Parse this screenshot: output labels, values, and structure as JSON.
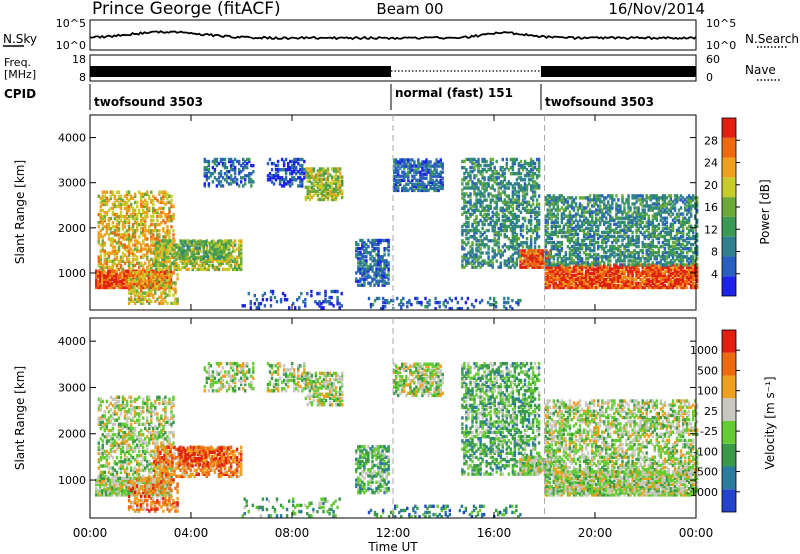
{
  "header": {
    "station": "Prince George (fitACF)",
    "beam": "Beam 00",
    "date": "16/Nov/2014"
  },
  "sky_panel": {
    "left_label": "N.Sky",
    "left_ticks": [
      "10^5",
      "10^0"
    ],
    "right_label": "N.Search",
    "right_ticks": [
      "10^5",
      "10^0"
    ]
  },
  "freq_panel": {
    "left_label_line1": "Freq.",
    "left_label_line2": "[MHz]",
    "left_ticks": [
      "18",
      "8"
    ],
    "right_label": "Nave",
    "right_ticks": [
      "60",
      "0"
    ]
  },
  "cpid": {
    "label": "CPID",
    "modes": [
      {
        "name": "twofsound 3503",
        "start_hour": 0
      },
      {
        "name": "normal (fast) 151",
        "start_hour": 12
      },
      {
        "name": "twofsound 3503",
        "start_hour": 18
      }
    ]
  },
  "chart_data": [
    {
      "type": "heatmap",
      "title": "",
      "xlabel": "",
      "ylabel": "Slant Range [km]",
      "x_range_hours": [
        0,
        24
      ],
      "ylim": [
        180,
        4500
      ],
      "yticks": [
        "1000",
        "2000",
        "3000",
        "4000"
      ],
      "colorbar": {
        "label": "Power [dB]",
        "ticks": [
          "4",
          "8",
          "12",
          "16",
          "20",
          "24",
          "28"
        ],
        "colors": [
          "#1c22e6",
          "#2a5fbf",
          "#2f7f8f",
          "#3a9a55",
          "#6aaa3a",
          "#c8cc2a",
          "#f0a020",
          "#ee6a10",
          "#e02010"
        ]
      }
    },
    {
      "type": "heatmap",
      "title": "",
      "xlabel": "Time UT",
      "ylabel": "Slant Range [km]",
      "x_range_hours": [
        0,
        24
      ],
      "ylim": [
        180,
        4500
      ],
      "yticks": [
        "1000",
        "2000",
        "3000",
        "4000"
      ],
      "xticks": [
        "00:00",
        "04:00",
        "08:00",
        "12:00",
        "16:00",
        "20:00",
        "00:00"
      ],
      "colorbar": {
        "label": "Velocity [m s⁻¹]",
        "ticks": [
          "1000",
          "500",
          "100",
          "25",
          "-25",
          "-100",
          "-500",
          "-1000"
        ],
        "colors": [
          "#2244cc",
          "#2c7a9e",
          "#3a9a4a",
          "#66cc33",
          "#c8c8c0",
          "#f0a020",
          "#ee6a10",
          "#e02010"
        ]
      }
    }
  ]
}
